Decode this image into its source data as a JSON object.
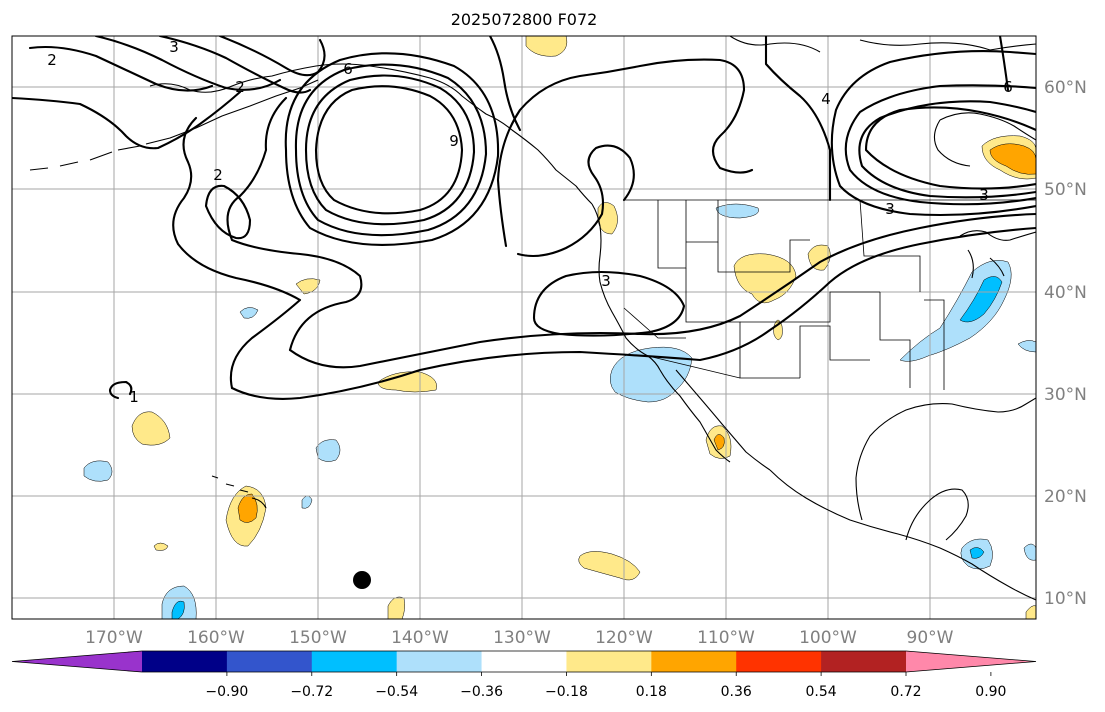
{
  "title": "2025072800 F072",
  "lat_labels": [
    "60°N",
    "50°N",
    "40°N",
    "30°N",
    "20°N",
    "10°N"
  ],
  "lon_labels": [
    "170°W",
    "160°W",
    "150°W",
    "140°W",
    "130°W",
    "120°W",
    "110°W",
    "100°W",
    "90°W"
  ],
  "contour_labels": [
    "2",
    "3",
    "6",
    "2",
    "9",
    "2",
    "3",
    "4",
    "6",
    "3",
    "3",
    "1"
  ],
  "colorbar": {
    "tick_labels": [
      "−0.90",
      "−0.72",
      "−0.54",
      "−0.36",
      "−0.18",
      "0.18",
      "0.36",
      "0.54",
      "0.72",
      "0.90"
    ],
    "colors": [
      "#9933cc",
      "#000088",
      "#3355cc",
      "#00bfff",
      "#aee0fb",
      "#ffffff",
      "#ffe98a",
      "#ffa500",
      "#ff3300",
      "#b22222",
      "#ff88aa"
    ]
  },
  "colors": {
    "grid": "#a6a6a6",
    "axis_text": "#808080",
    "contour": "#000000",
    "marker": "#000000"
  }
}
